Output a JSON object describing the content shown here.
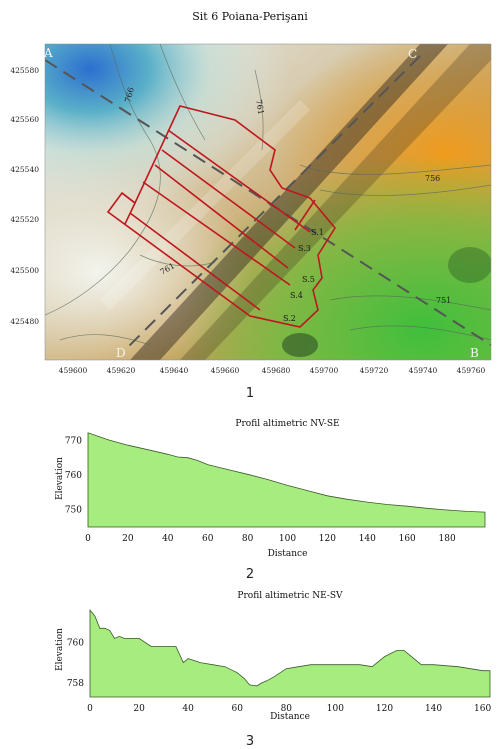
{
  "figure": {
    "title": "Sit 6 Poiana-Perişani",
    "caption_1": "1",
    "caption_2": "2",
    "caption_3": "3"
  },
  "map": {
    "corners": [
      "A",
      "B",
      "C",
      "D"
    ],
    "y_ticks": [
      "425580",
      "425560",
      "425540",
      "425520",
      "425500",
      "425480"
    ],
    "x_ticks": [
      "459600",
      "459620",
      "459640",
      "459660",
      "459680",
      "459700",
      "459720",
      "459740",
      "459760"
    ],
    "contours": [
      "766",
      "761",
      "756",
      "761",
      "751"
    ],
    "sections": [
      "S.1",
      "S.3",
      "S.5",
      "S.4",
      "S.2"
    ],
    "colors": {
      "section_outline": "#c0161e",
      "profile_fill": "#a6ec7e",
      "profile_line": "#3a5a28"
    }
  },
  "chart_data": [
    {
      "type": "area",
      "title": "Profil altimetric NV-SE",
      "xlabel": "Distance",
      "ylabel": "Elevation",
      "xlim": [
        0,
        200
      ],
      "ylim": [
        745,
        773
      ],
      "x_ticks": [
        0,
        20,
        40,
        60,
        80,
        100,
        120,
        140,
        160,
        180
      ],
      "y_ticks": [
        750,
        760,
        770
      ],
      "grid": false,
      "x": [
        0,
        5,
        10,
        20,
        30,
        40,
        45,
        50,
        55,
        60,
        70,
        80,
        90,
        100,
        110,
        120,
        130,
        140,
        150,
        160,
        170,
        180,
        190,
        199
      ],
      "y": [
        772.2,
        771.2,
        770.2,
        768.6,
        767.3,
        766.0,
        765.2,
        765.0,
        764.2,
        763.0,
        761.6,
        760.2,
        758.7,
        757.0,
        755.5,
        754.0,
        753.0,
        752.2,
        751.5,
        751.0,
        750.4,
        749.9,
        749.5,
        749.3
      ]
    },
    {
      "type": "area",
      "title": "Profil altimetric NE-SV",
      "xlabel": "Distance",
      "ylabel": "Elevation",
      "xlim": [
        0,
        163
      ],
      "ylim": [
        757.3,
        762.0
      ],
      "x_ticks": [
        0,
        20,
        40,
        60,
        80,
        100,
        120,
        140,
        160
      ],
      "y_ticks": [
        758,
        760
      ],
      "grid": false,
      "x": [
        0,
        2,
        4,
        6,
        8,
        10,
        12,
        14,
        20,
        25,
        30,
        35,
        38,
        40,
        45,
        50,
        55,
        60,
        63,
        65,
        68,
        70,
        72,
        75,
        80,
        85,
        90,
        95,
        100,
        105,
        110,
        115,
        120,
        125,
        128,
        130,
        135,
        140,
        145,
        150,
        155,
        160,
        163
      ],
      "y": [
        761.6,
        761.3,
        760.7,
        760.7,
        760.6,
        760.2,
        760.3,
        760.2,
        760.2,
        759.8,
        759.8,
        759.8,
        759.0,
        759.2,
        759.0,
        758.9,
        758.8,
        758.5,
        758.2,
        757.9,
        757.85,
        758.0,
        758.1,
        758.3,
        758.7,
        758.8,
        758.9,
        758.9,
        758.9,
        758.9,
        758.9,
        758.8,
        759.3,
        759.6,
        759.6,
        759.4,
        758.9,
        758.9,
        758.85,
        758.8,
        758.7,
        758.6,
        758.6
      ]
    }
  ]
}
